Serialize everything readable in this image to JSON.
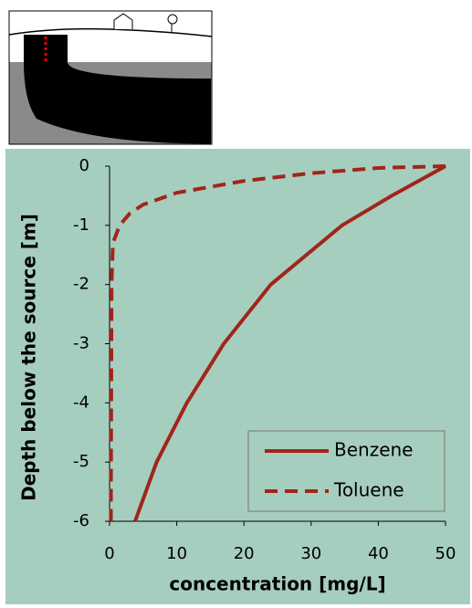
{
  "chart_data": {
    "type": "line",
    "xlabel": "concentration [mg/L]",
    "ylabel": "Depth below the source [m]",
    "xlim": [
      0,
      50
    ],
    "xticks": [
      0,
      10,
      20,
      30,
      40,
      50
    ],
    "ylim": [
      -6,
      0
    ],
    "yticks": [
      0,
      -1,
      -2,
      -3,
      -4,
      -5,
      -6
    ],
    "legend": "lower right",
    "series": [
      {
        "name": "Benzene",
        "color": "#a0251b",
        "dash": "solid",
        "x": [
          50,
          42,
          34.6,
          24,
          17,
          11.5,
          7,
          3.8
        ],
        "values": [
          0,
          -0.5,
          -1,
          -2,
          -3,
          -4,
          -5,
          -6
        ]
      },
      {
        "name": "Toluene",
        "color": "#a0251b",
        "dash": "dashed",
        "x": [
          50,
          40,
          30,
          20,
          10,
          5,
          3,
          1.5,
          0.5,
          0.3,
          0.2
        ],
        "values": [
          0,
          -0.03,
          -0.12,
          -0.25,
          -0.45,
          -0.65,
          -0.8,
          -1.0,
          -1.3,
          -2,
          -6
        ]
      }
    ]
  }
}
